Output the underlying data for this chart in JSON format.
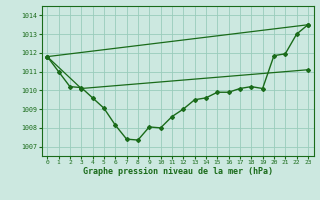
{
  "title": "Graphe pression niveau de la mer (hPa)",
  "background_color": "#cce8e0",
  "grid_color": "#99ccbb",
  "line_color": "#1a6b1a",
  "xlim": [
    -0.5,
    23.5
  ],
  "ylim": [
    1006.5,
    1014.5
  ],
  "yticks": [
    1007,
    1008,
    1009,
    1010,
    1011,
    1012,
    1013,
    1014
  ],
  "xticks": [
    0,
    1,
    2,
    3,
    4,
    5,
    6,
    7,
    8,
    9,
    10,
    11,
    12,
    13,
    14,
    15,
    16,
    17,
    18,
    19,
    20,
    21,
    22,
    23
  ],
  "series1_x": [
    0,
    1,
    2,
    3,
    4,
    5,
    6,
    7,
    8,
    9,
    10,
    11,
    12,
    13,
    14,
    15,
    16,
    17,
    18,
    19,
    20,
    21,
    22,
    23
  ],
  "series1_y": [
    1011.8,
    1011.0,
    1010.2,
    1010.15,
    1009.6,
    1009.05,
    1008.15,
    1007.4,
    1007.35,
    1008.05,
    1008.0,
    1008.6,
    1009.0,
    1009.5,
    1009.6,
    1009.9,
    1009.9,
    1010.1,
    1010.2,
    1010.1,
    1011.85,
    1011.95,
    1013.0,
    1013.5
  ],
  "series2_x": [
    0,
    23
  ],
  "series2_y": [
    1011.8,
    1013.5
  ],
  "series3_x": [
    0,
    3,
    23
  ],
  "series3_y": [
    1011.8,
    1010.1,
    1011.1
  ]
}
